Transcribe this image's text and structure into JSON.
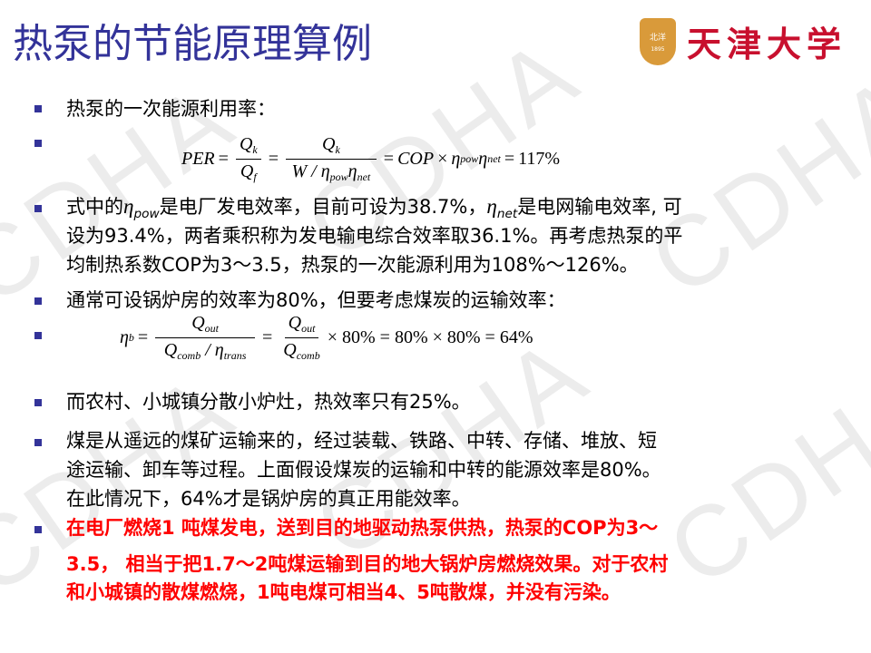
{
  "slide": {
    "title": "热泵的节能原理算例",
    "logo": {
      "text": "天津大学",
      "badge_text": "北洋",
      "badge_year": "1895"
    },
    "watermark": "CDHA",
    "colors": {
      "title": "#333399",
      "bullet": "#333399",
      "highlight": "#ff0000",
      "logo": "#c8102e"
    },
    "bullets": {
      "b1": "热泵的一次能源利用率：",
      "b3": {
        "l1_a": "式中的",
        "l1_eta1": "η",
        "l1_sub1": "pow",
        "l1_b": "是电厂发电效率，目前可设为38.7%，",
        "l1_eta2": "η",
        "l1_sub2": "net",
        "l1_c": "是电网输电效率, 可",
        "l2": "设为93.4%，两者乘积称为发电输电综合效率取36.1%。再考虑热泵的平",
        "l3": "均制热系数COP为3～3.5，热泵的一次能源利用为108%～126%。"
      },
      "b4": "通常可设锅炉房的效率为80%，但要考虑煤炭的运输效率：",
      "b6": "而农村、小城镇分散小炉灶，热效率只有25%。",
      "b7": [
        "煤是从遥远的煤矿运输来的，经过装载、铁路、中转、存储、堆放、短",
        "途运输、卸车等过程。上面假设煤炭的运输和中转的能源效率是80%。",
        "在此情况下，64%才是锅炉房的真正用能效率。"
      ],
      "b8": [
        "在电厂燃烧1 吨煤发电，送到目的地驱动热泵供热，热泵的COP为3～",
        "3.5， 相当于把1.7～2吨煤运输到目的地大锅炉房燃烧效果。对于农村",
        "和小城镇的散煤燃烧，1吨电煤可相当4、5吨散煤，并没有污染。"
      ]
    },
    "formula1": {
      "lhs": "PER",
      "eq": "=",
      "f1_num": "Q",
      "f1_num_sub": "k",
      "f1_den": "Q",
      "f1_den_sub": "f",
      "f2_num": "Q",
      "f2_num_sub": "k",
      "f2_den_a": "W / η",
      "f2_den_sub1": "pow",
      "f2_den_b": "η",
      "f2_den_sub2": "net",
      "rhs_a": "COP",
      "times": "×",
      "rhs_eta1": "η",
      "rhs_sub1": "pow",
      "rhs_eta2": "η",
      "rhs_sub2": "net",
      "result": "117%"
    },
    "formula2": {
      "lhs": "η",
      "lhs_sub": "b",
      "eq": "=",
      "f1_num": "Q",
      "f1_num_sub": "out",
      "f1_den_a": "Q",
      "f1_den_sub1": "comb",
      "f1_den_b": " / η",
      "f1_den_sub2": "trans",
      "f2_num": "Q",
      "f2_num_sub": "out",
      "f2_den": "Q",
      "f2_den_sub": "comb",
      "rest": "× 80% = 80% × 80% = 64%"
    }
  }
}
